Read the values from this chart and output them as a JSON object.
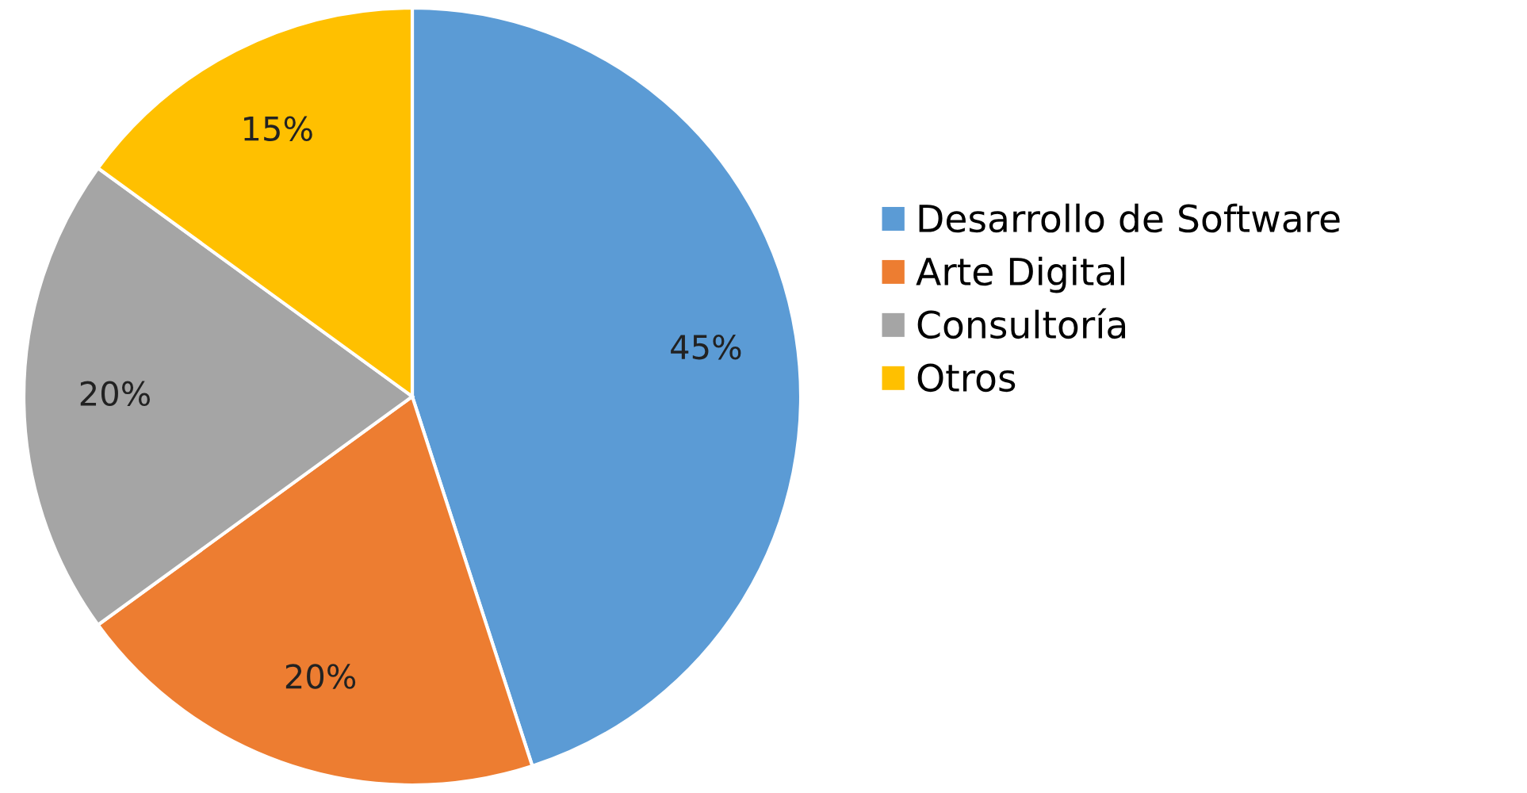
{
  "chart_data": {
    "type": "pie",
    "categories": [
      "Desarrollo de Software",
      "Arte Digital",
      "Consultoría",
      "Otros"
    ],
    "values": [
      45,
      20,
      20,
      15
    ],
    "value_labels": [
      "45%",
      "20%",
      "20%",
      "15%"
    ],
    "colors": [
      "#5b9bd5",
      "#ed7d31",
      "#a5a5a5",
      "#ffc000"
    ],
    "legend": "right"
  }
}
